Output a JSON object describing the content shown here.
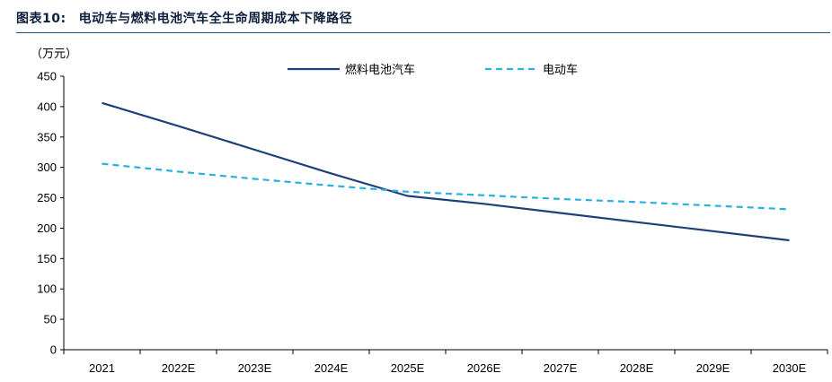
{
  "figure": {
    "number": "图表10:",
    "title": "电动车与燃料电池汽车全生命周期成本下降路径"
  },
  "chart_data": {
    "type": "line",
    "unit_label": "（万元）",
    "xlabel": "",
    "ylabel": "",
    "categories": [
      "2021",
      "2022E",
      "2023E",
      "2024E",
      "2025E",
      "2026E",
      "2027E",
      "2028E",
      "2029E",
      "2030E"
    ],
    "ylim": [
      0,
      450
    ],
    "yticks": [
      0,
      50,
      100,
      150,
      200,
      250,
      300,
      350,
      400,
      450
    ],
    "grid": false,
    "legend_position": "top",
    "series": [
      {
        "name": "燃料电池汽车",
        "color": "#1f3f7a",
        "style": "solid",
        "values": [
          406,
          368,
          329,
          290,
          253,
          240,
          225,
          210,
          195,
          180
        ]
      },
      {
        "name": "电动车",
        "color": "#2ab0e0",
        "style": "dashed",
        "values": [
          306,
          293,
          281,
          270,
          260,
          254,
          248,
          243,
          237,
          231
        ]
      }
    ]
  }
}
